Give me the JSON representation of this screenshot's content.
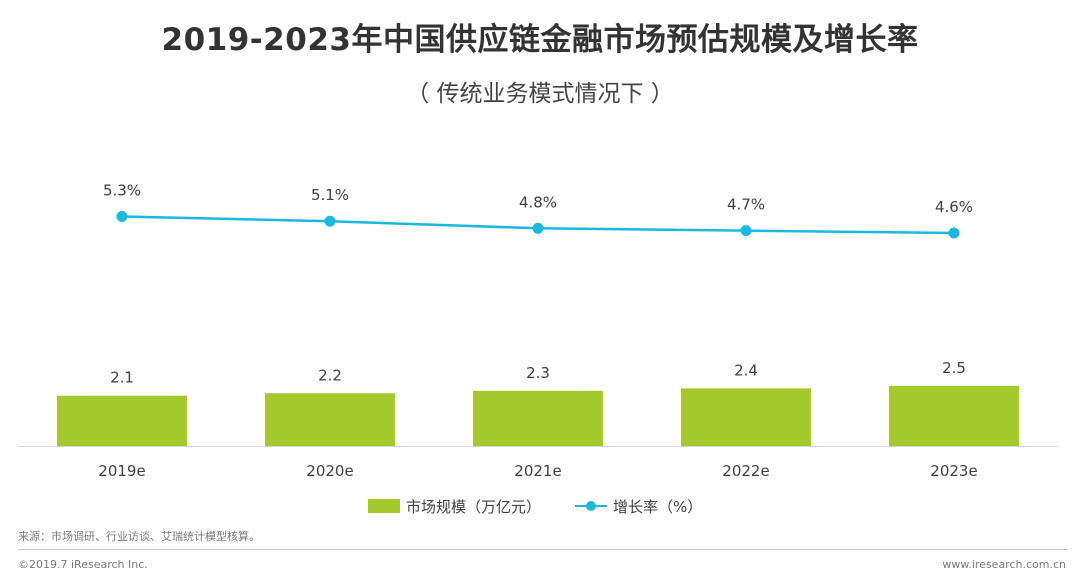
{
  "chart_data": {
    "type": "bar",
    "title": "2019-2023年中国供应链金融市场预估规模及增长率",
    "subtitle": "（ 传统业务模式情况下 ）",
    "categories": [
      "2019e",
      "2020e",
      "2021e",
      "2022e",
      "2023e"
    ],
    "series": [
      {
        "name": "市场规模（万亿元）",
        "type": "bar",
        "values": [
          2.1,
          2.2,
          2.3,
          2.4,
          2.5
        ],
        "labels": [
          "2.1",
          "2.2",
          "2.3",
          "2.4",
          "2.5"
        ],
        "color": "#a4c92b"
      },
      {
        "name": "增长率（%）",
        "type": "line",
        "values": [
          5.3,
          5.1,
          4.8,
          4.7,
          4.6
        ],
        "labels": [
          "5.3%",
          "5.1%",
          "4.8%",
          "4.7%",
          "4.6%"
        ],
        "color": "#1bb8df"
      }
    ],
    "xlabel": "",
    "ylabel": "",
    "legend": "bottom",
    "grid": false
  },
  "source": "来源：市场调研、行业访谈、艾瑞统计模型核算。",
  "copyright": "©2019.7 iResearch Inc.",
  "website": "www.iresearch.com.cn"
}
